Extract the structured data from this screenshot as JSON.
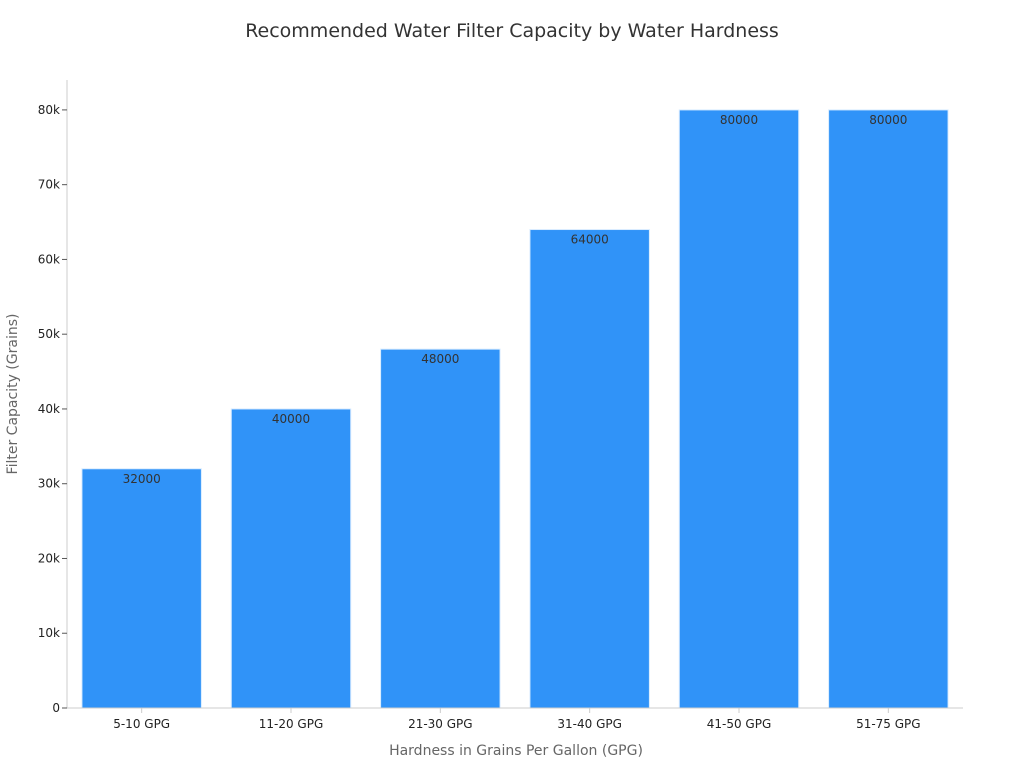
{
  "chart_data": {
    "type": "bar",
    "title": "Recommended Water Filter Capacity by Water Hardness",
    "xlabel": "Hardness in Grains Per Gallon (GPG)",
    "ylabel": "Filter Capacity (Grains)",
    "categories": [
      "5-10 GPG",
      "11-20 GPG",
      "21-30 GPG",
      "31-40 GPG",
      "41-50 GPG",
      "51-75 GPG"
    ],
    "values": [
      32000,
      40000,
      48000,
      64000,
      80000,
      80000
    ],
    "ylim": [
      0,
      84000
    ],
    "yticks": [
      0,
      10000,
      20000,
      30000,
      40000,
      50000,
      60000,
      70000,
      80000
    ],
    "ytick_labels": [
      "0",
      "10k",
      "20k",
      "30k",
      "40k",
      "50k",
      "60k",
      "70k",
      "80k"
    ],
    "bar_color": "#3093f8",
    "grid": false
  }
}
